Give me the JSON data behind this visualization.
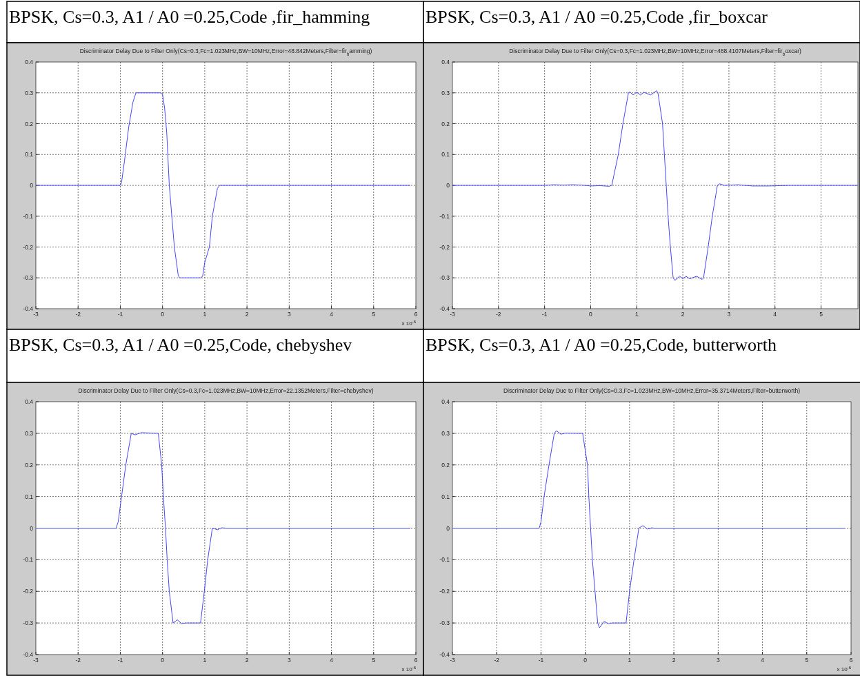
{
  "chart_data": [
    {
      "type": "line",
      "title": "BPSK, Cs=0.3,  A1 / A0 =0.25,Code ,fir_hamming",
      "subtitle": "Discriminator Delay Due to Filter Only(Cs=0.3,Fc=1.023MHz,BW=10MHz,Error=48.842Meters,Filter=fir$_{h}$amming)",
      "xlim": [
        -3,
        6
      ],
      "xticks": [
        -3,
        -2,
        -1,
        0,
        1,
        2,
        3,
        4,
        5,
        6
      ],
      "ylim": [
        -0.4,
        0.4
      ],
      "yticks": [
        -0.4,
        -0.3,
        -0.2,
        -0.1,
        0,
        0.1,
        0.2,
        0.3,
        0.4
      ],
      "grid": true,
      "annotations": [
        "x 10$^{-6}$"
      ],
      "series": [
        {
          "color": "#4646ff",
          "x": [
            -3,
            -1.0,
            -0.97,
            -0.9,
            -0.8,
            -0.7,
            -0.63,
            -0.6,
            -0.05,
            0,
            0.05,
            0.1,
            0.16,
            0.28,
            0.37,
            0.4,
            0.9,
            0.95,
            1.0,
            1.11,
            1.18,
            1.3,
            1.35,
            5.87
          ],
          "values": [
            0,
            0,
            0.01,
            0.08,
            0.19,
            0.27,
            0.3,
            0.3,
            0.3,
            0.295,
            0.25,
            0.17,
            0.0,
            -0.2,
            -0.29,
            -0.3,
            -0.3,
            -0.295,
            -0.25,
            -0.2,
            -0.1,
            -0.01,
            0,
            0
          ]
        }
      ]
    },
    {
      "type": "line",
      "title": "BPSK, Cs=0.3,  A1 / A0 =0.25,Code ,fir_boxcar",
      "subtitle": "Discriminator Delay Due to Filter Only(Cs=0.3,Fc=1.023MHz,BW=10MHz,Error=488.4107Meters,Filter=fir$_{b}$oxcar)",
      "xlim": [
        -3,
        5.8
      ],
      "xticks": [
        -3,
        -2,
        -1,
        0,
        1,
        2,
        3,
        4,
        5
      ],
      "ylim": [
        -0.4,
        0.4
      ],
      "yticks": [
        -0.4,
        -0.3,
        -0.2,
        -0.1,
        0,
        0.1,
        0.2,
        0.3,
        0.4
      ],
      "grid": true,
      "series": [
        {
          "color": "#4646ff",
          "x": [
            -3,
            -1,
            -0.8,
            -0.6,
            -0.4,
            -0.2,
            0,
            0.2,
            0.4,
            0.46,
            0.5,
            0.6,
            0.7,
            0.82,
            0.85,
            0.92,
            1.0,
            1.08,
            1.15,
            1.3,
            1.43,
            1.46,
            1.56,
            1.6,
            1.64,
            1.68,
            1.73,
            1.79,
            1.83,
            1.93,
            2.0,
            2.07,
            2.15,
            2.3,
            2.42,
            2.45,
            2.55,
            2.64,
            2.75,
            2.8,
            2.9,
            3.2,
            3.5,
            3.9,
            4.3,
            5.8
          ],
          "values": [
            0,
            0,
            0.002,
            0.001,
            0.002,
            0.001,
            -0.002,
            -0.001,
            -0.003,
            0,
            0.03,
            0.1,
            0.2,
            0.3,
            0.303,
            0.293,
            0.302,
            0.293,
            0.302,
            0.293,
            0.307,
            0.3,
            0.2,
            0.1,
            0,
            -0.1,
            -0.2,
            -0.3,
            -0.308,
            -0.295,
            -0.303,
            -0.295,
            -0.303,
            -0.295,
            -0.305,
            -0.3,
            -0.2,
            -0.1,
            0,
            0.005,
            0,
            0.002,
            -0.002,
            -0.002,
            0,
            0
          ]
        }
      ]
    },
    {
      "type": "line",
      "title": "BPSK, Cs=0.3,  A1 / A0 =0.25,Code, chebyshev",
      "subtitle": "Discriminator Delay Due to Filter Only(Cs=0.3,Fc=1.023MHz,BW=10MHz,Error=22.1352Meters,Filter=chebyshev)",
      "xlim": [
        -3,
        6
      ],
      "xticks": [
        -3,
        -2,
        -1,
        0,
        1,
        2,
        3,
        4,
        5,
        6
      ],
      "ylim": [
        -0.4,
        0.4
      ],
      "yticks": [
        -0.4,
        -0.3,
        -0.2,
        -0.1,
        0,
        0.1,
        0.2,
        0.3,
        0.4
      ],
      "grid": true,
      "annotations": [
        "x 10$^{-6}$"
      ],
      "series": [
        {
          "color": "#4646ff",
          "x": [
            -3,
            -1.1,
            -1.05,
            -0.97,
            -0.87,
            -0.74,
            -0.65,
            -0.55,
            -0.5,
            -0.1,
            -0.02,
            0.02,
            0.07,
            0.11,
            0.16,
            0.25,
            0.35,
            0.45,
            0.55,
            0.9,
            0.99,
            1.07,
            1.18,
            1.3,
            1.4,
            1.52,
            5.87
          ],
          "values": [
            0,
            0,
            0.02,
            0.1,
            0.2,
            0.3,
            0.295,
            0.3,
            0.302,
            0.3,
            0.2,
            0.1,
            0,
            -0.1,
            -0.2,
            -0.3,
            -0.29,
            -0.302,
            -0.3,
            -0.3,
            -0.2,
            -0.1,
            0,
            -0.005,
            0.001,
            0,
            0
          ]
        }
      ]
    },
    {
      "type": "line",
      "title": "BPSK, Cs=0.3,  A1 / A0 =0.25,Code, butterworth",
      "subtitle": "Discriminator Delay Due to Filter Only(Cs=0.3,Fc=1.023MHz,BW=10MHz,Error=35.3714Meters,Filter=butterworth)",
      "xlim": [
        -3,
        6
      ],
      "xticks": [
        -3,
        -2,
        -1,
        0,
        1,
        2,
        3,
        4,
        5,
        6
      ],
      "ylim": [
        -0.4,
        0.4
      ],
      "yticks": [
        -0.4,
        -0.3,
        -0.2,
        -0.1,
        0,
        0.1,
        0.2,
        0.3,
        0.4
      ],
      "grid": true,
      "annotations": [
        "x 10$^{-6}$"
      ],
      "series": [
        {
          "color": "#4646ff",
          "x": [
            -3,
            -1.04,
            -1.0,
            -0.93,
            -0.82,
            -0.7,
            -0.65,
            -0.55,
            -0.45,
            -0.06,
            0.05,
            0.08,
            0.12,
            0.16,
            0.22,
            0.28,
            0.32,
            0.43,
            0.52,
            0.6,
            0.92,
            1.0,
            1.1,
            1.21,
            1.3,
            1.4,
            1.5,
            1.55,
            5.87
          ],
          "values": [
            0,
            0,
            0.02,
            0.1,
            0.2,
            0.3,
            0.308,
            0.297,
            0.301,
            0.3,
            0.2,
            0.1,
            0,
            -0.1,
            -0.2,
            -0.3,
            -0.315,
            -0.295,
            -0.303,
            -0.3,
            -0.3,
            -0.2,
            -0.1,
            0,
            0.008,
            -0.003,
            0.001,
            0,
            0
          ]
        }
      ]
    }
  ]
}
